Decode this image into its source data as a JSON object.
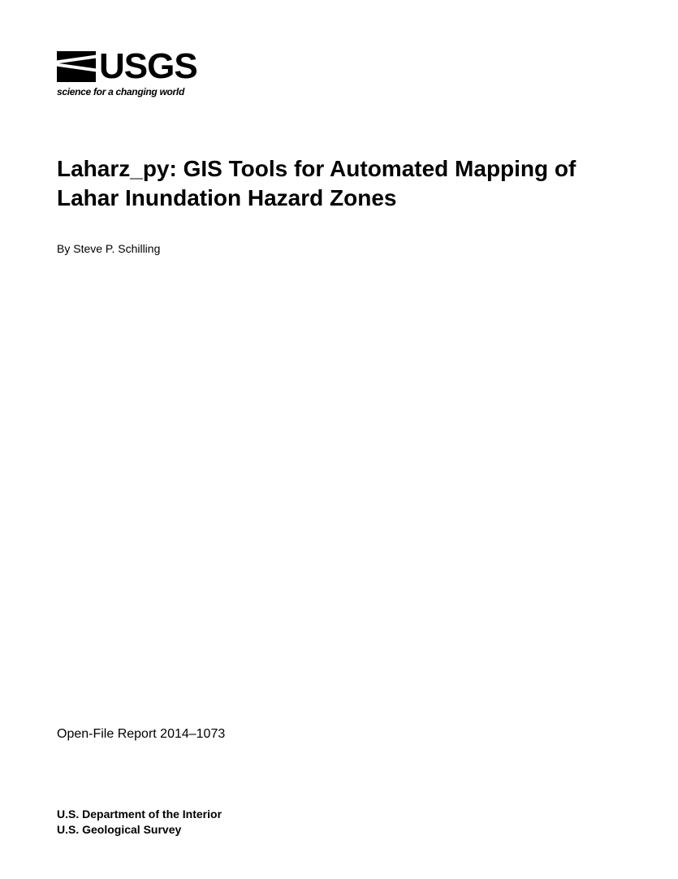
{
  "logo": {
    "org_name": "USGS",
    "tagline": "science for a changing world"
  },
  "document": {
    "title": "Laharz_py: GIS Tools for Automated Mapping of Lahar Inundation Hazard Zones",
    "author_line": "By Steve P. Schilling",
    "report_number": "Open-File Report 2014–1073",
    "department": "U.S. Department of the Interior",
    "survey": "U.S. Geological Survey"
  },
  "styling": {
    "background_color": "#ffffff",
    "text_color": "#000000",
    "title_fontsize": 28,
    "author_fontsize": 14,
    "report_fontsize": 16,
    "dept_fontsize": 14,
    "logo_fontsize": 44,
    "tagline_fontsize": 12
  }
}
